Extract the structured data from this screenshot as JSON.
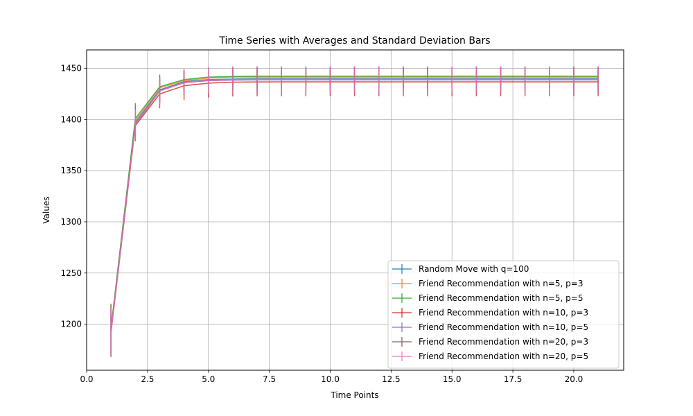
{
  "chart_data": {
    "type": "line",
    "title": "Time Series with Averages and Standard Deviation Bars",
    "xlabel": "Time Points",
    "ylabel": "Values",
    "xlim": [
      0,
      22.05
    ],
    "ylim": [
      1155,
      1468
    ],
    "xticks": [
      0.0,
      2.5,
      5.0,
      7.5,
      10.0,
      12.5,
      15.0,
      17.5,
      20.0
    ],
    "xtick_labels": [
      "0.0",
      "2.5",
      "5.0",
      "7.5",
      "10.0",
      "12.5",
      "15.0",
      "17.5",
      "20.0"
    ],
    "yticks": [
      1200,
      1250,
      1300,
      1350,
      1400,
      1450
    ],
    "ytick_labels": [
      "1200",
      "1250",
      "1300",
      "1350",
      "1400",
      "1450"
    ],
    "grid": true,
    "legend_position": "lower-right",
    "x": [
      1,
      2,
      3,
      4,
      5,
      6,
      7,
      8,
      9,
      10,
      11,
      12,
      13,
      14,
      15,
      16,
      17,
      18,
      19,
      20,
      21
    ],
    "series": [
      {
        "name": "Random Move with q=100",
        "color": "#1f77b4",
        "values": [
          1194,
          1397,
          1429,
          1437,
          1439,
          1439.5,
          1440,
          1440,
          1440,
          1440,
          1440,
          1440,
          1440,
          1440,
          1440,
          1440,
          1440,
          1440,
          1440,
          1440,
          1440
        ],
        "errors": [
          24,
          15,
          12,
          10,
          9,
          9,
          9,
          9,
          9,
          9,
          9,
          9,
          9,
          9,
          9,
          9,
          9,
          9,
          9,
          9,
          9
        ]
      },
      {
        "name": "Friend Recommendation with n=5, p=3",
        "color": "#ff7f0e",
        "values": [
          1195,
          1399,
          1431,
          1438,
          1440.5,
          1441.5,
          1441.5,
          1441.5,
          1441.5,
          1441.5,
          1441.5,
          1441.5,
          1441.5,
          1441.5,
          1441.5,
          1441.5,
          1441.5,
          1441.5,
          1441.5,
          1441.5,
          1441.5
        ],
        "errors": [
          24,
          15,
          12,
          10,
          9,
          9,
          9,
          9,
          9,
          9,
          9,
          9,
          9,
          9,
          9,
          9,
          9,
          9,
          9,
          9,
          9
        ]
      },
      {
        "name": "Friend Recommendation with n=5, p=5",
        "color": "#2ca02c",
        "values": [
          1196,
          1401,
          1432,
          1439,
          1441.5,
          1442,
          1442.3,
          1442.3,
          1442.3,
          1442.3,
          1442.3,
          1442.3,
          1442.3,
          1442.3,
          1442.3,
          1442.3,
          1442.3,
          1442.3,
          1442.3,
          1442.3,
          1442.3
        ],
        "errors": [
          24,
          15,
          12,
          10,
          9,
          9,
          9,
          9,
          9,
          9,
          9,
          9,
          9,
          9,
          9,
          9,
          9,
          9,
          9,
          9,
          9
        ]
      },
      {
        "name": "Friend Recommendation with n=10, p=3",
        "color": "#d62728",
        "values": [
          1192,
          1394,
          1425,
          1433,
          1435.5,
          1436.5,
          1436.7,
          1436.8,
          1436.8,
          1436.8,
          1436.8,
          1436.8,
          1436.8,
          1436.8,
          1436.8,
          1436.8,
          1436.8,
          1436.8,
          1436.8,
          1436.8,
          1436.8
        ],
        "errors": [
          24,
          15,
          14,
          14,
          14,
          14,
          14,
          14,
          14,
          14,
          14,
          14,
          14,
          14,
          14,
          14,
          14,
          14,
          14,
          14,
          14
        ]
      },
      {
        "name": "Friend Recommendation with n=10, p=5",
        "color": "#9467bd",
        "values": [
          1193,
          1396,
          1428,
          1436,
          1438,
          1438.5,
          1438.7,
          1438.7,
          1438.7,
          1438.7,
          1438.7,
          1438.7,
          1438.7,
          1438.7,
          1438.7,
          1438.7,
          1438.7,
          1438.7,
          1438.7,
          1438.7,
          1438.7
        ],
        "errors": [
          24,
          15,
          12,
          12,
          12,
          12,
          12,
          12,
          12,
          12,
          12,
          12,
          12,
          12,
          12,
          12,
          12,
          12,
          12,
          12,
          12
        ]
      },
      {
        "name": "Friend Recommendation with n=20, p=3",
        "color": "#8c564b",
        "values": [
          1193,
          1395,
          1428,
          1436,
          1438.5,
          1439,
          1439.2,
          1439.2,
          1439.2,
          1439.2,
          1439.2,
          1439.2,
          1439.2,
          1439.2,
          1439.2,
          1439.2,
          1439.2,
          1439.2,
          1439.2,
          1439.2,
          1439.2
        ],
        "errors": [
          24,
          15,
          12,
          12,
          12,
          12,
          12,
          12,
          12,
          12,
          12,
          12,
          12,
          12,
          12,
          12,
          12,
          12,
          12,
          12,
          12
        ]
      },
      {
        "name": "Friend Recommendation with n=20, p=5",
        "color": "#e377c2",
        "values": [
          1193,
          1395,
          1428,
          1436,
          1438.5,
          1439,
          1439.3,
          1439.3,
          1439.3,
          1439.3,
          1439.3,
          1439.3,
          1439.3,
          1439.3,
          1439.3,
          1439.3,
          1439.3,
          1439.3,
          1439.3,
          1439.3,
          1439.3
        ],
        "errors": [
          24,
          15,
          13,
          13,
          13,
          13,
          13,
          13,
          13,
          13,
          13,
          13,
          13,
          13,
          13,
          13,
          13,
          13,
          13,
          13,
          13
        ]
      }
    ]
  }
}
